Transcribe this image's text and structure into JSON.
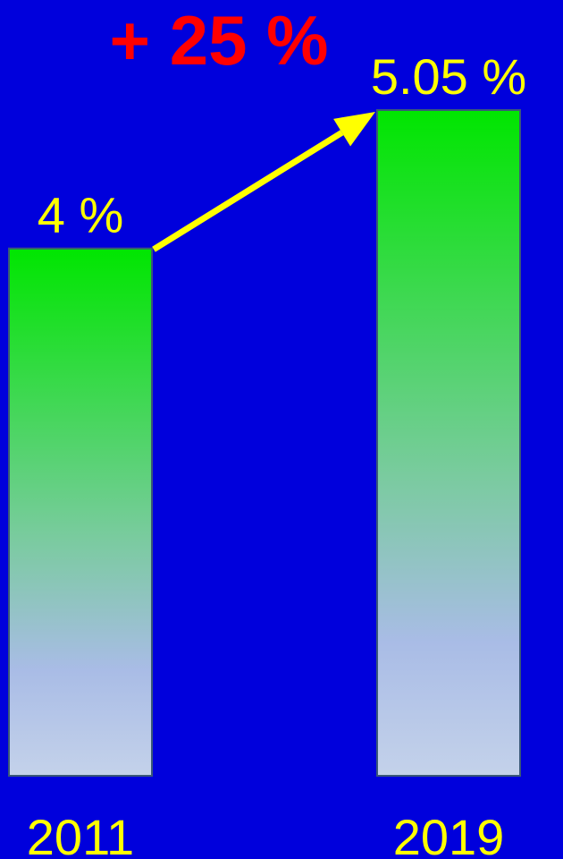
{
  "chart_data": {
    "type": "bar",
    "categories": [
      "2011",
      "2019"
    ],
    "values": [
      4,
      5.05
    ],
    "value_labels": [
      "4 %",
      "5.05 %"
    ],
    "annotation": "+ 25 %",
    "ylim": [
      0,
      5.05
    ],
    "grid": false
  },
  "colors": {
    "background": "#0000DC",
    "bar_top": "#00E600",
    "bar_bottom": "#C4D2EA",
    "bar_border": "#3A5878",
    "label": "#FFFF00",
    "annotation": "#FF0000",
    "arrow": "#FFFF00"
  }
}
